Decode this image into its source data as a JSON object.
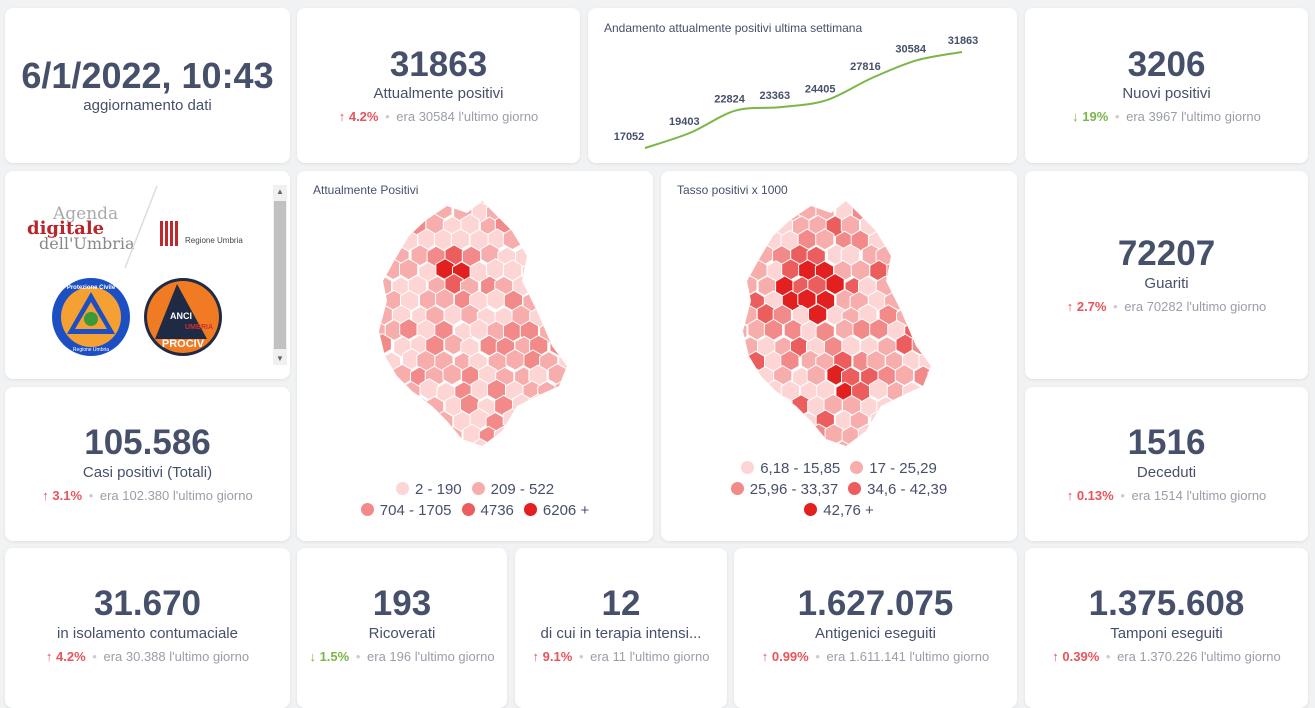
{
  "update": {
    "datetime": "6/1/2022, 10:43",
    "label": "aggiornamento dati"
  },
  "metrics": {
    "attualmente": {
      "value": "31863",
      "label": "Attualmente positivi",
      "dir": "up",
      "pct": "4.2%",
      "prev": "era 30584",
      "suffix": "l'ultimo giorno"
    },
    "nuovi": {
      "value": "3206",
      "label": "Nuovi positivi",
      "dir": "down",
      "pct": "19%",
      "prev": "era 3967",
      "suffix": "l'ultimo giorno"
    },
    "guariti": {
      "value": "72207",
      "label": "Guariti",
      "dir": "up",
      "pct": "2.7%",
      "prev": "era 70282",
      "suffix": "l'ultimo giorno"
    },
    "casi": {
      "value": "105.586",
      "label": "Casi positivi (Totali)",
      "dir": "up",
      "pct": "3.1%",
      "prev": "era 102.380",
      "suffix": "l'ultimo giorno"
    },
    "deceduti": {
      "value": "1516",
      "label": "Deceduti",
      "dir": "up",
      "pct": "0.13%",
      "prev": "era 1514",
      "suffix": "l'ultimo giorno"
    },
    "isolamento": {
      "value": "31.670",
      "label": "in isolamento contumaciale",
      "dir": "up",
      "pct": "4.2%",
      "prev": "era 30.388",
      "suffix": "l'ultimo giorno"
    },
    "ricoverati": {
      "value": "193",
      "label": "Ricoverati",
      "dir": "down",
      "pct": "1.5%",
      "prev": "era 196",
      "suffix": "l'ultimo giorno"
    },
    "terapia": {
      "value": "12",
      "label": "di cui in terapia intensi...",
      "dir": "up",
      "pct": "9.1%",
      "prev": "era 11",
      "suffix": "l'ultimo giorno"
    },
    "antigenici": {
      "value": "1.627.075",
      "label": "Antigenici eseguiti",
      "dir": "up",
      "pct": "0.99%",
      "prev": "era 1.611.141",
      "suffix": "l'ultimo giorno"
    },
    "tamponi": {
      "value": "1.375.608",
      "label": "Tamponi eseguiti",
      "dir": "up",
      "pct": "0.39%",
      "prev": "era 1.370.226",
      "suffix": "l'ultimo giorno"
    }
  },
  "arrows": {
    "up": "↑",
    "down": "↓",
    "sep": "•"
  },
  "colors": {
    "up": "#e8545a",
    "down": "#7ab648",
    "line": "#7ab648",
    "scale": [
      "#fdd5d5",
      "#f8adad",
      "#f28a8a",
      "#ec5e5e",
      "#e32020"
    ]
  },
  "logos": {
    "agenda": [
      "Agenda",
      "digitale",
      "dell'Umbria"
    ],
    "regione": "Regione Umbria",
    "protezione": "Protezione Civile",
    "protezione_sub": "Regione Umbria",
    "anci": [
      "ANCI",
      "UMBRIA",
      "PROCIV"
    ]
  },
  "chart_data": {
    "type": "line",
    "title": "Andamento attualmente positivi ultima settimana",
    "values": [
      17052,
      19403,
      22824,
      23363,
      24405,
      27816,
      30584,
      31863
    ],
    "labels": [
      "17052",
      "19403",
      "22824",
      "23363",
      "24405",
      "27816",
      "30584",
      "31863"
    ],
    "xlabel": "",
    "ylabel": ""
  },
  "maps": [
    {
      "title": "Attualmente Positivi",
      "legend": [
        "2 - 190",
        "209 - 522",
        "704 - 1705",
        "4736",
        "6206 +"
      ]
    },
    {
      "title": "Tasso positivi x 1000",
      "legend": [
        "6,18 - 15,85",
        "17 - 25,29",
        "25,96 - 33,37",
        "34,6 - 42,39",
        "42,76 +"
      ]
    }
  ]
}
